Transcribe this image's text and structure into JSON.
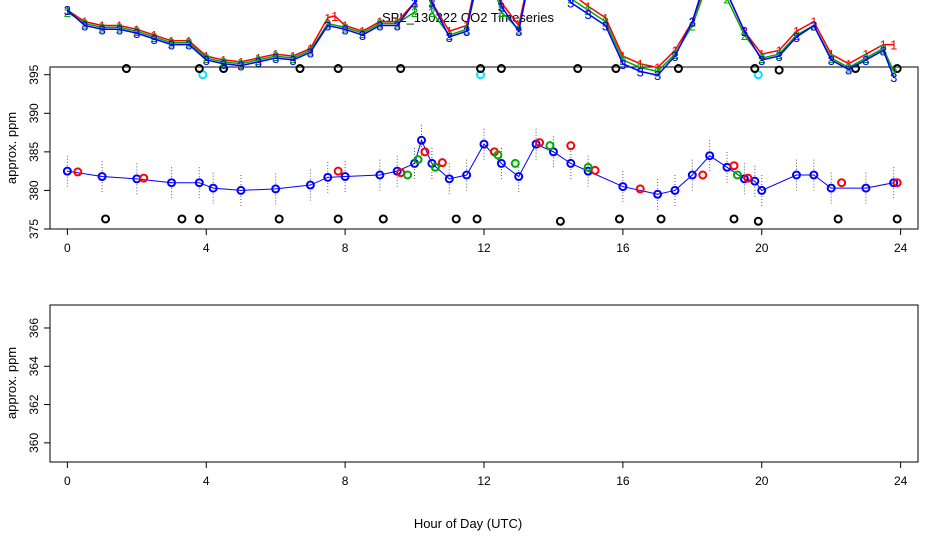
{
  "title": "SPL_130222  CO2 Timeseries",
  "xlabel": "Hour of Day (UTC)",
  "chart_data": [
    {
      "type": "scatter",
      "ylabel": "approx. ppm",
      "xlim": [
        -0.5,
        24.5
      ],
      "ylim": [
        375,
        396
      ],
      "x_ticks": [
        0,
        4,
        8,
        12,
        16,
        20,
        24
      ],
      "y_ticks": [
        375,
        380,
        385,
        390,
        395
      ],
      "x_tick_labels": [
        "0",
        "4",
        "8",
        "12",
        "16",
        "20",
        "24"
      ],
      "y_tick_labels": [
        "375",
        "380",
        "385",
        "390",
        "395"
      ],
      "colors": {
        "blue": "#0000ff",
        "red": "#ff0000",
        "green": "#00aa00",
        "cyan": "#00e5ff",
        "black": "#000000",
        "range": "#555555"
      },
      "markers": "open circles",
      "range_bars": "dotted vertical min–max range per sample",
      "series": [
        {
          "color": "blue",
          "x": [
            0,
            1,
            2,
            3,
            3.8,
            4.2,
            5,
            6,
            7,
            7.5,
            8,
            9,
            9.5,
            10,
            10.2,
            10.5,
            11,
            11.5,
            12,
            12.5,
            13,
            13.5,
            14,
            14.5,
            15,
            16,
            17,
            17.5,
            18,
            18.5,
            19,
            19.5,
            19.8,
            20,
            21,
            21.5,
            22,
            23,
            23.8
          ],
          "y": [
            382.5,
            381.8,
            381.5,
            381,
            381,
            380.3,
            380,
            380.2,
            380.7,
            381.7,
            381.8,
            382,
            382.5,
            383.5,
            386.5,
            383.5,
            381.5,
            382,
            386,
            383.5,
            381.8,
            386,
            385,
            383.5,
            382.5,
            380.5,
            379.5,
            380,
            382,
            384.5,
            383,
            381.5,
            381.2,
            380,
            382,
            382,
            380.3,
            380.3,
            381
          ]
        },
        {
          "color": "red",
          "x": [
            0.3,
            2.2,
            7.8,
            9.6,
            10.3,
            10.8,
            12.3,
            13.6,
            14.5,
            15.2,
            16.5,
            18.3,
            19.2,
            19.6,
            22.3,
            23.9
          ],
          "y": [
            382.4,
            381.6,
            382.5,
            382.3,
            385,
            383.6,
            385,
            386.2,
            385.8,
            382.6,
            380.2,
            382,
            383.2,
            381.6,
            381,
            381
          ]
        },
        {
          "color": "green",
          "x": [
            9.8,
            10.1,
            10.6,
            12.4,
            12.9,
            13.9,
            15,
            19.3
          ],
          "y": [
            382,
            384,
            383,
            384.6,
            383.5,
            385.8,
            383,
            382
          ]
        },
        {
          "color": "cyan",
          "x": [
            3.9,
            11.9,
            19.9
          ],
          "y": [
            395,
            395,
            395
          ]
        },
        {
          "color": "black",
          "x": [
            1.7,
            3.8,
            4.5,
            6.7,
            7.8,
            9.6,
            11.9,
            12.5,
            14.7,
            15.8,
            17.6,
            19.8,
            20.5,
            22.7,
            23.9
          ],
          "y": [
            395.8,
            395.8,
            395.8,
            395.8,
            395.8,
            395.8,
            395.8,
            395.8,
            395.8,
            395.8,
            395.8,
            395.8,
            395.6,
            395.8,
            395.8
          ]
        },
        {
          "color": "black",
          "x": [
            1.1,
            3.3,
            3.8,
            6.1,
            7.8,
            9.1,
            11.2,
            11.8,
            14.2,
            15.9,
            17.1,
            19.2,
            19.9,
            22.2,
            23.9
          ],
          "y": [
            376.3,
            376.3,
            376.3,
            376.3,
            376.3,
            376.3,
            376.3,
            376.3,
            376,
            376.3,
            376.3,
            376.3,
            376,
            376.3,
            376.3
          ]
        }
      ]
    },
    {
      "type": "line",
      "ylabel": "approx. ppm",
      "xlim": [
        -0.5,
        24.5
      ],
      "ylim": [
        359,
        367.2
      ],
      "x_ticks": [
        0,
        4,
        8,
        12,
        16,
        20,
        24
      ],
      "y_ticks": [
        360,
        362,
        364,
        366
      ],
      "x_tick_labels": [
        "0",
        "4",
        "8",
        "12",
        "16",
        "20",
        "24"
      ],
      "y_tick_labels": [
        "360",
        "362",
        "364",
        "366"
      ],
      "colors": {
        "1": "#ff0000",
        "2": "#00aa00",
        "3": "#0000ff"
      },
      "markers": "digits 1, 2, 3 at data points, joined by lines of the same colour",
      "series": [
        {
          "color": "1",
          "x": [
            0,
            0.5,
            1,
            1.5,
            2,
            2.5,
            3,
            3.5,
            4,
            4.5,
            5,
            5.5,
            6,
            6.5,
            7,
            7.5,
            7.7,
            8,
            8.5,
            9,
            9.5,
            10,
            10.2,
            10.5,
            11,
            11.5,
            12,
            12.5,
            13,
            13.5,
            13.7,
            14,
            14.3,
            14.5,
            15,
            15.5,
            16,
            16.5,
            17,
            17.5,
            18,
            18.5,
            19,
            19.5,
            20,
            20.5,
            21,
            21.5,
            22,
            22.5,
            23,
            23.5,
            23.8
          ],
          "y": [
            382.6,
            382,
            381.8,
            381.8,
            381.6,
            381.3,
            381,
            381,
            380.2,
            380,
            379.9,
            380.1,
            380.3,
            380.2,
            380.6,
            382.2,
            382.3,
            381.8,
            381.5,
            382,
            382,
            383,
            386,
            383,
            381.5,
            381.8,
            386,
            383,
            381.8,
            386,
            386.5,
            385.8,
            385,
            383.5,
            382.8,
            382.2,
            380.2,
            379.8,
            379.6,
            380.5,
            382,
            384.6,
            383.5,
            381.5,
            380.3,
            380.5,
            381.5,
            382,
            380.3,
            379.8,
            380.3,
            380.8,
            380.8
          ]
        },
        {
          "color": "2",
          "x": [
            0,
            0.5,
            1,
            1.5,
            2,
            2.5,
            3,
            3.5,
            4,
            4.5,
            5,
            5.5,
            6,
            6.5,
            7,
            7.5,
            8,
            8.5,
            9,
            9.5,
            10,
            10.2,
            10.5,
            11,
            11.5,
            12,
            12.5,
            13,
            13.5,
            13.7,
            14,
            14.5,
            15,
            15.5,
            16,
            16.5,
            17,
            17.5,
            18,
            18.5,
            19,
            19.5,
            20,
            20.5,
            21,
            21.5,
            22,
            22.5,
            23,
            23.5,
            23.8
          ],
          "y": [
            382.5,
            381.9,
            381.7,
            381.7,
            381.5,
            381.2,
            380.9,
            380.9,
            380.1,
            379.9,
            379.8,
            380,
            380.2,
            380.1,
            380.5,
            381.9,
            381.7,
            381.4,
            381.9,
            381.9,
            382.5,
            385.8,
            382.5,
            381.3,
            381.6,
            385.5,
            382.5,
            381.6,
            385.7,
            386.4,
            385.5,
            383.2,
            382.6,
            382,
            380,
            379.6,
            379.4,
            380.3,
            381.8,
            384.3,
            383.2,
            381.3,
            380.1,
            380.3,
            381.3,
            381.8,
            380.1,
            379.6,
            380.1,
            380.6,
            379.4
          ]
        },
        {
          "color": "3",
          "x": [
            0,
            0.5,
            1,
            1.5,
            2,
            2.5,
            3,
            3.5,
            4,
            4.5,
            5,
            5.5,
            6,
            6.5,
            7,
            7.5,
            8,
            8.5,
            9,
            9.5,
            10,
            10.2,
            10.5,
            11,
            11.5,
            12,
            12.5,
            13,
            13.5,
            13.7,
            14,
            14.5,
            15,
            15.5,
            16,
            16.5,
            17,
            17.5,
            18,
            18.5,
            19,
            19.5,
            20,
            20.5,
            21,
            21.5,
            22,
            22.5,
            23,
            23.5,
            23.8
          ],
          "y": [
            382.6,
            381.8,
            381.6,
            381.6,
            381.4,
            381.1,
            380.8,
            380.8,
            380,
            379.8,
            379.7,
            379.9,
            380.1,
            380,
            380.4,
            381.8,
            381.6,
            381.3,
            381.8,
            381.8,
            383,
            386.6,
            383,
            381.2,
            381.5,
            386.2,
            382.8,
            381.5,
            386,
            386.6,
            385.2,
            383,
            382.4,
            381.8,
            379.8,
            379.4,
            379.2,
            380.2,
            382,
            384.9,
            383.5,
            381.5,
            380,
            380.2,
            381.2,
            381.8,
            380,
            379.5,
            380,
            380.5,
            379.1
          ]
        }
      ]
    }
  ]
}
